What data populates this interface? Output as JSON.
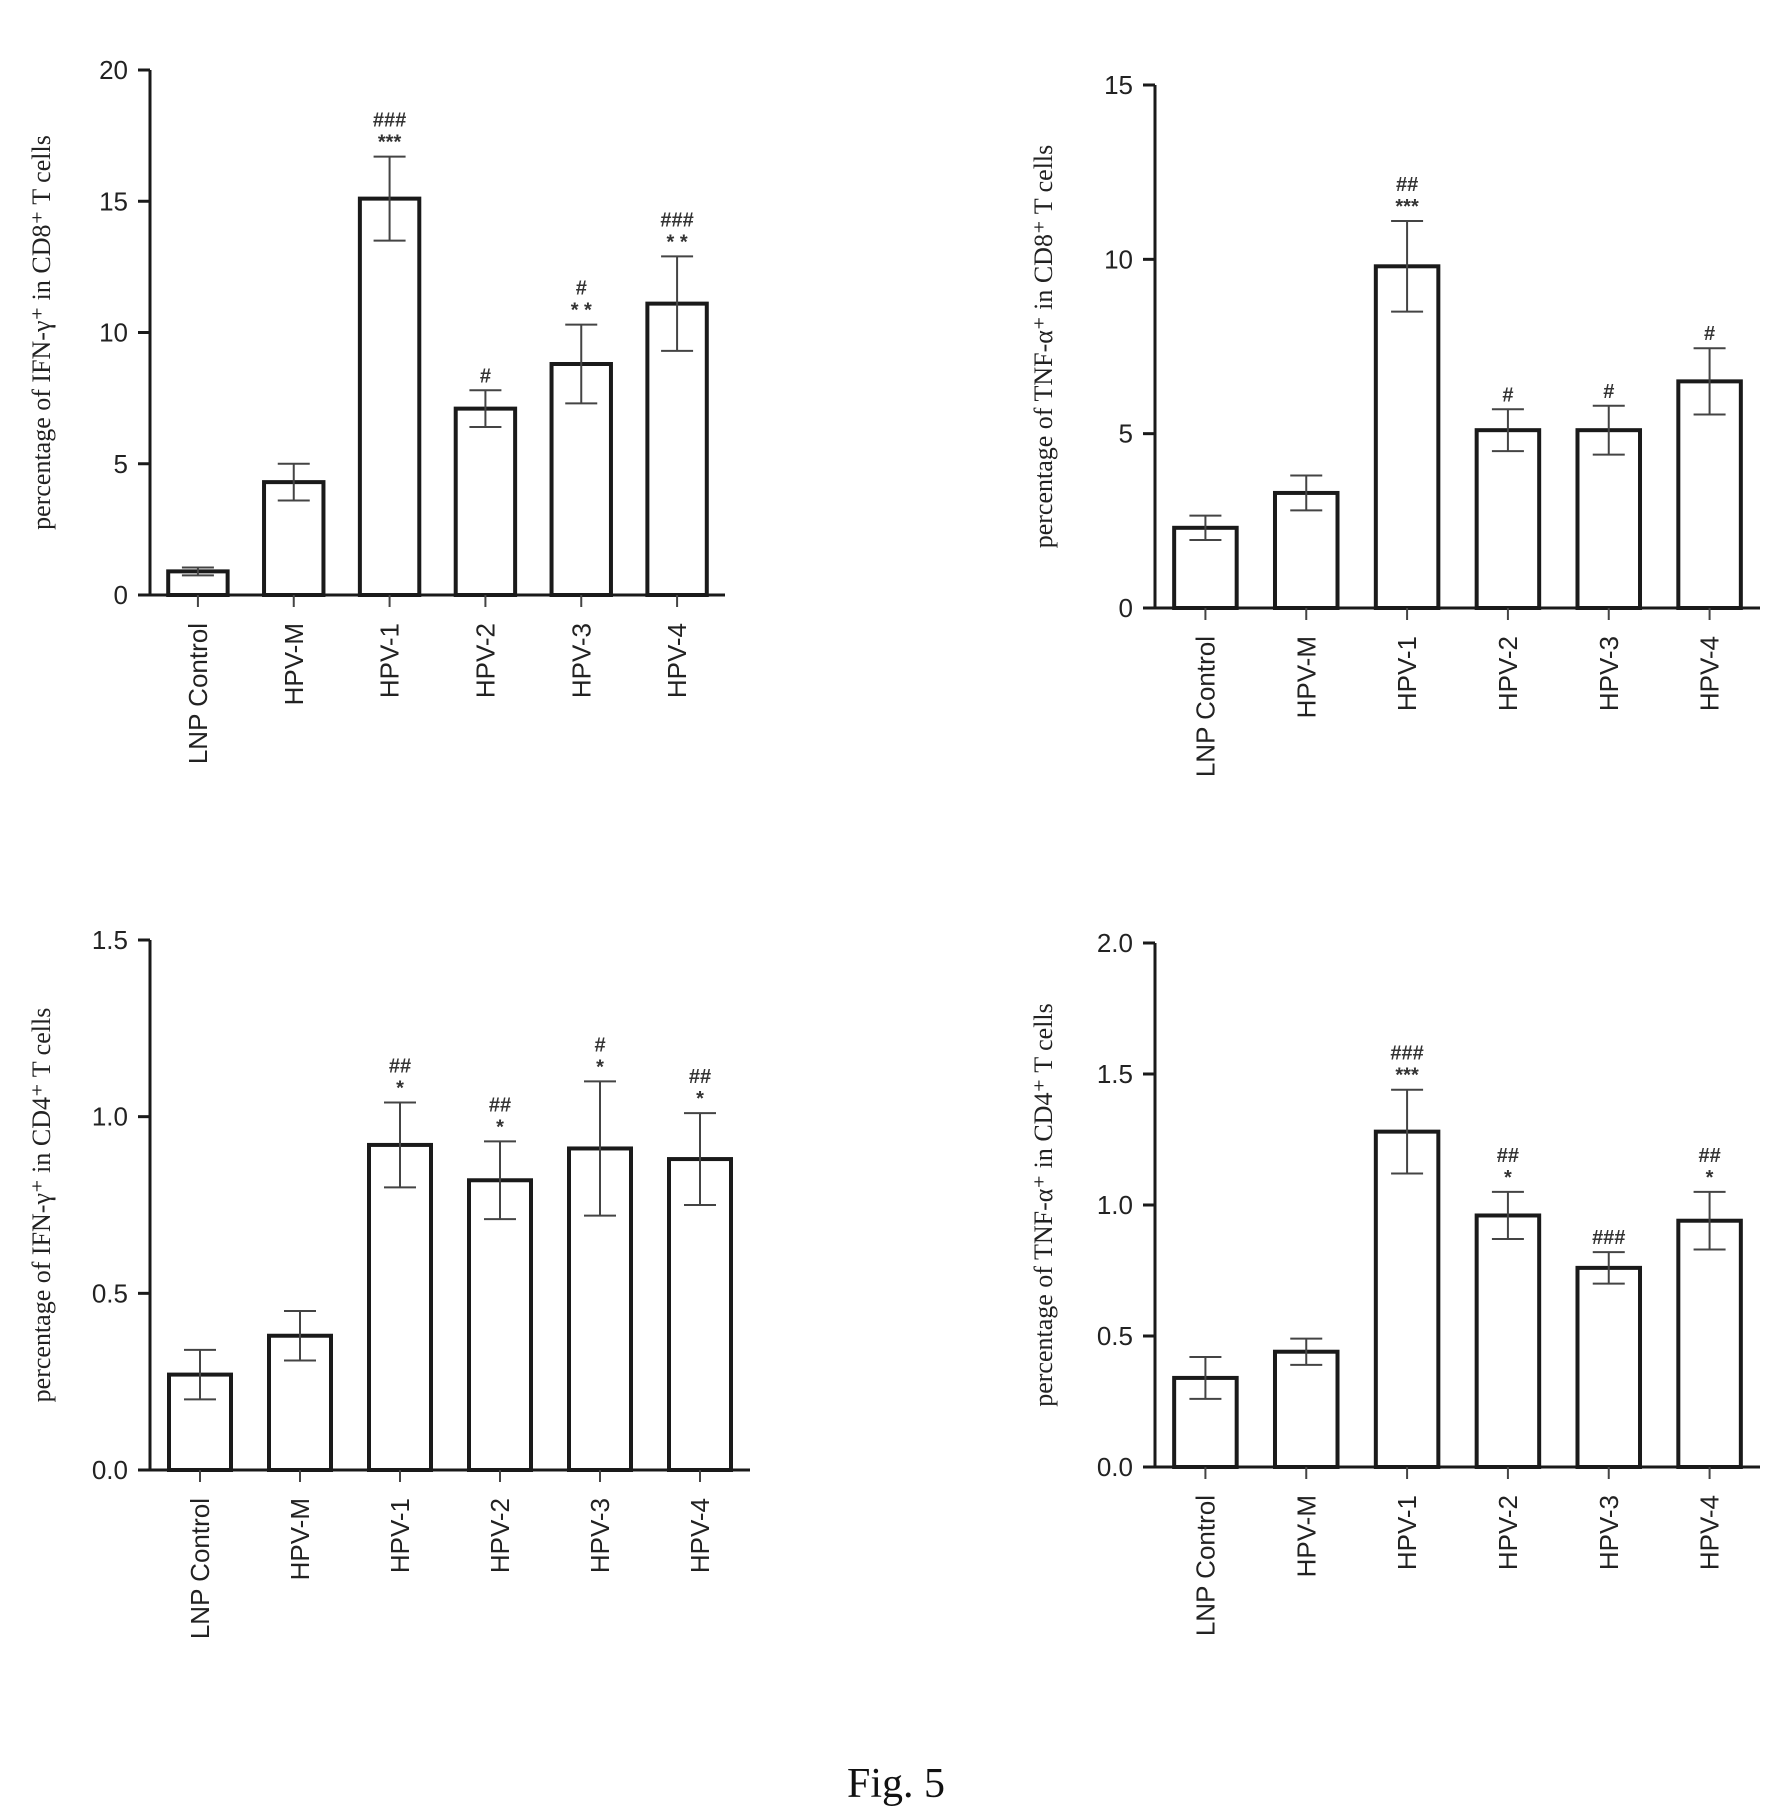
{
  "figure": {
    "caption": "Fig. 5"
  },
  "chart_data": [
    {
      "type": "bar",
      "title": "",
      "xlabel": "",
      "ylabel": "percentage of IFN-γ⁺ in CD8⁺ T cells",
      "ylim": [
        0,
        20
      ],
      "yticks": [
        "0",
        "5",
        "10",
        "15",
        "20"
      ],
      "ytick_values": [
        0,
        5,
        10,
        15,
        20
      ],
      "categories": [
        "LNP Control",
        "HPV-M",
        "HPV-1",
        "HPV-2",
        "HPV-3",
        "HPV-4"
      ],
      "values": [
        0.9,
        4.3,
        15.1,
        7.1,
        8.8,
        11.1
      ],
      "errors": [
        0.15,
        0.7,
        1.6,
        0.7,
        1.5,
        1.8
      ],
      "significance": [
        [
          "",
          ""
        ],
        [
          "",
          ""
        ],
        [
          "***",
          "###"
        ],
        [
          "",
          "#"
        ],
        [
          "* *",
          "#"
        ],
        [
          "* *",
          "###"
        ]
      ]
    },
    {
      "type": "bar",
      "title": "",
      "xlabel": "",
      "ylabel": "percentage of TNF-α⁺ in CD8⁺ T cells",
      "ylim": [
        0,
        15
      ],
      "yticks": [
        "0",
        "5",
        "10",
        "15"
      ],
      "ytick_values": [
        0,
        5,
        10,
        15
      ],
      "categories": [
        "LNP Control",
        "HPV-M",
        "HPV-1",
        "HPV-2",
        "HPV-3",
        "HPV-4"
      ],
      "values": [
        2.3,
        3.3,
        9.8,
        5.1,
        5.1,
        6.5
      ],
      "errors": [
        0.35,
        0.5,
        1.3,
        0.6,
        0.7,
        0.95
      ],
      "significance": [
        [
          "",
          ""
        ],
        [
          "",
          ""
        ],
        [
          "***",
          "##"
        ],
        [
          "",
          "#"
        ],
        [
          "",
          "#"
        ],
        [
          "",
          "#"
        ]
      ]
    },
    {
      "type": "bar",
      "title": "",
      "xlabel": "",
      "ylabel": "percentage of IFN-γ⁺ in CD4⁺ T cells",
      "ylim": [
        0,
        1.5
      ],
      "yticks": [
        "0.0",
        "0.5",
        "1.0",
        "1.5"
      ],
      "ytick_values": [
        0,
        0.5,
        1.0,
        1.5
      ],
      "categories": [
        "LNP Control",
        "HPV-M",
        "HPV-1",
        "HPV-2",
        "HPV-3",
        "HPV-4"
      ],
      "values": [
        0.27,
        0.38,
        0.92,
        0.82,
        0.91,
        0.88
      ],
      "errors": [
        0.07,
        0.07,
        0.12,
        0.11,
        0.19,
        0.13
      ],
      "significance": [
        [
          "",
          ""
        ],
        [
          "",
          ""
        ],
        [
          "*",
          "##"
        ],
        [
          "*",
          "##"
        ],
        [
          "*",
          "#"
        ],
        [
          "*",
          "##"
        ]
      ]
    },
    {
      "type": "bar",
      "title": "",
      "xlabel": "",
      "ylabel": "percentage of TNF-α⁺ in CD4⁺ T cells",
      "ylim": [
        0,
        2.0
      ],
      "yticks": [
        "0.0",
        "0.5",
        "1.0",
        "1.5",
        "2.0"
      ],
      "ytick_values": [
        0,
        0.5,
        1.0,
        1.5,
        2.0
      ],
      "categories": [
        "LNP Control",
        "HPV-M",
        "HPV-1",
        "HPV-2",
        "HPV-3",
        "HPV-4"
      ],
      "values": [
        0.34,
        0.44,
        1.28,
        0.96,
        0.76,
        0.94
      ],
      "errors": [
        0.08,
        0.05,
        0.16,
        0.09,
        0.06,
        0.11
      ],
      "significance": [
        [
          "",
          ""
        ],
        [
          "",
          ""
        ],
        [
          "***",
          "###"
        ],
        [
          "*",
          "##"
        ],
        [
          "",
          "###"
        ],
        [
          "*",
          "##"
        ]
      ]
    }
  ]
}
